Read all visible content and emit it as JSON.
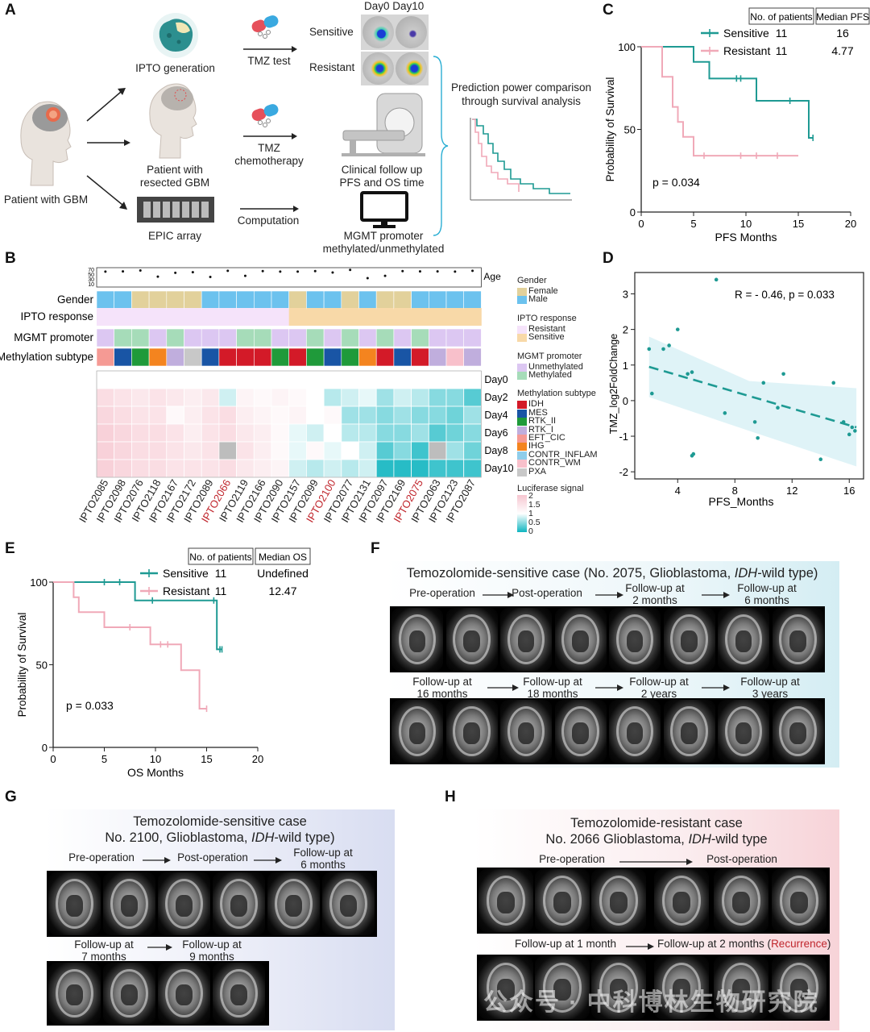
{
  "panels": {
    "A": "A",
    "B": "B",
    "C": "C",
    "D": "D",
    "E": "E",
    "F": "F",
    "G": "G",
    "H": "H"
  },
  "panelA": {
    "day_header": "Day0 Day10",
    "ipto_generation": "IPTO generation",
    "tmz_test": "TMZ test",
    "sensitive": "Sensitive",
    "resistant": "Resistant",
    "patient_gbm": "Patient with GBM",
    "patient_resected": "Patient with\nresected GBM",
    "tmz_chemo": "TMZ\nchemotherapy",
    "clinical": "Clinical follow up\nPFS and OS time",
    "epic": "EPIC array",
    "computation": "Computation",
    "mgmt": "MGMT promoter\nmethylated/unmethylated",
    "prediction": "Prediction power comparison\nthrough survival analysis",
    "icons": [
      "brain-organoid-icon",
      "capsule-icon",
      "head-profile-icon",
      "mri-scanner-icon",
      "monitor-icon",
      "epic-array-chip-icon",
      "mini-km-curve-icon"
    ]
  },
  "panelB": {
    "row_labels": {
      "gender": "Gender",
      "ipto": "IPTO response",
      "mgmt": "MGMT promoter",
      "methyl": "Methylation subtype"
    },
    "age_label": "Age",
    "age_ticks": [
      "70",
      "50",
      "30",
      "10"
    ],
    "ages": [
      62,
      63,
      66,
      45,
      58,
      60,
      44,
      65,
      48,
      64,
      62,
      62,
      64,
      59,
      68,
      40,
      48,
      64,
      63,
      63,
      62,
      65
    ],
    "samples": [
      "IPTO2085",
      "IPTO2098",
      "IPTO2076",
      "IPTO2118",
      "IPTO2167",
      "IPTO2172",
      "IPTO2089",
      "IPTO2066",
      "IPTO2119",
      "IPTO2166",
      "IPTO2090",
      "IPTO2157",
      "IPTO2099",
      "IPTO2100",
      "IPTO2077",
      "IPTO2131",
      "IPTO2097",
      "IPTO2169",
      "IPTO2075",
      "IPTO2063",
      "IPTO2123",
      "IPTO2087"
    ],
    "highlighted_samples": [
      "IPTO2066",
      "IPTO2100",
      "IPTO2075"
    ],
    "gender": [
      "M",
      "M",
      "F",
      "F",
      "F",
      "F",
      "M",
      "M",
      "M",
      "M",
      "M",
      "F",
      "M",
      "M",
      "F",
      "M",
      "F",
      "F",
      "M",
      "M",
      "M",
      "M"
    ],
    "ipto": [
      "R",
      "R",
      "R",
      "R",
      "R",
      "R",
      "R",
      "R",
      "R",
      "R",
      "R",
      "S",
      "S",
      "S",
      "S",
      "S",
      "S",
      "S",
      "S",
      "S",
      "S",
      "S"
    ],
    "mgmt": [
      "U",
      "M",
      "M",
      "U",
      "M",
      "U",
      "U",
      "U",
      "M",
      "M",
      "U",
      "U",
      "M",
      "U",
      "M",
      "U",
      "M",
      "U",
      "M",
      "U",
      "U",
      "U"
    ],
    "methyl": [
      "EFT_CIC",
      "MES",
      "RTK_II",
      "IHG",
      "RTK_I",
      "PXA",
      "MES",
      "IDH",
      "IDH",
      "IDH",
      "RTK_II",
      "IDH",
      "RTK_II",
      "MES",
      "RTK_II",
      "IHG",
      "IDH",
      "MES",
      "IDH",
      "RTK_I",
      "CONTR_WM",
      "RTK_I"
    ],
    "days": [
      "Day0",
      "Day2",
      "Day4",
      "Day6",
      "Day8",
      "Day10"
    ],
    "luciferase": [
      [
        1,
        1,
        1,
        1,
        1,
        1,
        1,
        1,
        1,
        1,
        1,
        1,
        1,
        1,
        1,
        1,
        1,
        1,
        1,
        1,
        1,
        1
      ],
      [
        1.6,
        1.5,
        1.4,
        1.5,
        1.4,
        1.3,
        1.4,
        0.8,
        1.2,
        1.1,
        1.2,
        1.1,
        1.0,
        0.7,
        0.8,
        0.9,
        0.6,
        0.8,
        0.7,
        0.5,
        0.5,
        0.3
      ],
      [
        1.7,
        1.6,
        1.5,
        1.5,
        1.1,
        1.3,
        1.5,
        1.6,
        1.3,
        1.2,
        1.1,
        1.2,
        1.0,
        1.1,
        0.6,
        0.6,
        0.5,
        0.6,
        0.5,
        0.5,
        0.4,
        0.6
      ],
      [
        1.8,
        1.7,
        1.6,
        1.6,
        1.5,
        1.3,
        1.5,
        1.6,
        1.4,
        1.3,
        1.1,
        0.9,
        0.8,
        1.0,
        0.7,
        0.7,
        0.5,
        0.5,
        0.6,
        0.3,
        0.4,
        0.5
      ],
      [
        1.8,
        1.7,
        1.6,
        1.6,
        1.5,
        1.4,
        1.5,
        "NA",
        1.5,
        1.3,
        1.1,
        0.9,
        1.1,
        0.9,
        1.0,
        0.8,
        0.3,
        0.5,
        0.2,
        "NA",
        0.6,
        0.4
      ],
      [
        1.8,
        1.7,
        1.6,
        1.6,
        1.5,
        1.5,
        1.5,
        1.6,
        1.4,
        1.3,
        1.2,
        0.8,
        0.7,
        0.8,
        0.7,
        0.8,
        0.1,
        0.1,
        0.1,
        0.2,
        0.2,
        0.2
      ]
    ],
    "legend": {
      "gender_title": "Gender",
      "gender_items": [
        {
          "label": "Female",
          "color": "#e2d19b"
        },
        {
          "label": "Male",
          "color": "#6cc2ee"
        }
      ],
      "ipto_title": "IPTO response",
      "ipto_items": [
        {
          "label": "Resistant",
          "color": "#f5e3fa"
        },
        {
          "label": "Sensitive",
          "color": "#f8d9a8"
        }
      ],
      "mgmt_title": "MGMT promoter",
      "mgmt_items": [
        {
          "label": "Unmethylated",
          "color": "#dcc7f2"
        },
        {
          "label": "Methylated",
          "color": "#a6dcb9"
        }
      ],
      "methyl_title": "Methylation subtype",
      "methyl_items": [
        {
          "label": "IDH",
          "color": "#d31a28"
        },
        {
          "label": "MES",
          "color": "#1955a5"
        },
        {
          "label": "RTK_II",
          "color": "#1f9a3a"
        },
        {
          "label": "RTK_I",
          "color": "#c0aedd"
        },
        {
          "label": "EFT_CIC",
          "color": "#f59a94"
        },
        {
          "label": "IHG",
          "color": "#f4841f"
        },
        {
          "label": "CONTR_INFLAM",
          "color": "#8fcdea"
        },
        {
          "label": "CONTR_WM",
          "color": "#f8c0cb"
        },
        {
          "label": "PXA",
          "color": "#c8c8c8"
        }
      ],
      "luc_title": "Luciferase signal",
      "luc_ticks": [
        "2",
        "1.5",
        "1",
        "0.5",
        "0"
      ]
    },
    "colors": {
      "low": "#0fb5c0",
      "mid": "#ffffff",
      "high": "#f6c6d0",
      "na": "#bdbdbd",
      "highlight": "#c0262d"
    }
  },
  "chart_data": [
    {
      "id": "C",
      "type": "line",
      "subtype": "kaplan-meier",
      "xlabel": "PFS Months",
      "ylabel": "Probability of Survival",
      "xlim": [
        0,
        20
      ],
      "ylim": [
        0,
        100
      ],
      "xticks": [
        0,
        5,
        10,
        15,
        20
      ],
      "yticks": [
        0,
        50,
        100
      ],
      "pvalue": "p = 0.034",
      "table_headers": [
        "No. of patients",
        "Median PFS"
      ],
      "series": [
        {
          "name": "Sensitive",
          "n": "11",
          "median": "16",
          "color": "#1e9a93",
          "steps": [
            [
              0,
              100
            ],
            [
              5,
              100
            ],
            [
              5,
              90.9
            ],
            [
              6.5,
              90.9
            ],
            [
              6.5,
              80.8
            ],
            [
              9.5,
              80.8
            ],
            [
              9.5,
              80.8
            ],
            [
              11,
              80.8
            ],
            [
              11,
              67.3
            ],
            [
              16,
              67.3
            ],
            [
              16,
              44.9
            ],
            [
              16.4,
              44.9
            ]
          ],
          "censors": [
            [
              9.1,
              80.8
            ],
            [
              9.5,
              80.8
            ],
            [
              14.2,
              67.3
            ],
            [
              16.4,
              44.9
            ]
          ]
        },
        {
          "name": "Resistant",
          "n": "11",
          "median": "4.77",
          "color": "#f0a9b8",
          "steps": [
            [
              0,
              100
            ],
            [
              2,
              100
            ],
            [
              2,
              81.8
            ],
            [
              3,
              81.8
            ],
            [
              3,
              63.6
            ],
            [
              3.5,
              63.6
            ],
            [
              3.5,
              54.5
            ],
            [
              4,
              54.5
            ],
            [
              4,
              45.5
            ],
            [
              5,
              45.5
            ],
            [
              5,
              34.1
            ],
            [
              15,
              34.1
            ]
          ],
          "censors": [
            [
              6,
              34.1
            ],
            [
              9.5,
              34.1
            ],
            [
              11,
              34.1
            ],
            [
              13,
              34.1
            ]
          ]
        }
      ]
    },
    {
      "id": "D",
      "type": "scatter",
      "xlabel": "PFS_Months",
      "ylabel": "TMZ_log2FoldChange",
      "xlim": [
        1,
        17
      ],
      "ylim": [
        -2.2,
        3.6
      ],
      "xticks": [
        4,
        8,
        12,
        16
      ],
      "yticks": [
        -2,
        -1,
        0,
        1,
        2,
        3
      ],
      "annotation": "R = - 0.46, p = 0.033",
      "color": "#1e9a93",
      "points": [
        [
          2,
          1.45
        ],
        [
          2.2,
          0.2
        ],
        [
          3,
          1.45
        ],
        [
          3.4,
          1.55
        ],
        [
          4,
          2.0
        ],
        [
          4.7,
          0.75
        ],
        [
          5,
          0.8
        ],
        [
          5,
          -1.55
        ],
        [
          5.1,
          -1.5
        ],
        [
          6.7,
          3.4
        ],
        [
          7.3,
          -0.35
        ],
        [
          9.4,
          -0.6
        ],
        [
          9.6,
          -1.05
        ],
        [
          10,
          0.5
        ],
        [
          11,
          -0.2
        ],
        [
          11.4,
          0.75
        ],
        [
          14,
          -1.65
        ],
        [
          14.9,
          0.5
        ],
        [
          15.6,
          -0.6
        ],
        [
          16,
          -0.95
        ],
        [
          16.2,
          -0.75
        ],
        [
          16.4,
          -0.85
        ]
      ],
      "fit": [
        [
          2,
          0.95
        ],
        [
          16.5,
          -0.75
        ]
      ]
    },
    {
      "id": "E",
      "type": "line",
      "subtype": "kaplan-meier",
      "xlabel": "OS Months",
      "ylabel": "Probability of Survival",
      "xlim": [
        0,
        20
      ],
      "ylim": [
        0,
        100
      ],
      "xticks": [
        0,
        5,
        10,
        15,
        20
      ],
      "yticks": [
        0,
        50,
        100
      ],
      "pvalue": "p = 0.033",
      "table_headers": [
        "No. of patients",
        "Median OS"
      ],
      "series": [
        {
          "name": "Sensitive",
          "n": "11",
          "median": "Undefined",
          "color": "#1e9a93",
          "steps": [
            [
              0,
              100
            ],
            [
              8,
              100
            ],
            [
              8,
              88.9
            ],
            [
              16,
              88.9
            ],
            [
              16,
              59.3
            ],
            [
              16.5,
              59.3
            ]
          ],
          "censors": [
            [
              5,
              100
            ],
            [
              6.5,
              100
            ],
            [
              9.7,
              88.9
            ],
            [
              15.7,
              88.9
            ],
            [
              16.3,
              59.3
            ],
            [
              16.5,
              59.3
            ]
          ]
        },
        {
          "name": "Resistant",
          "n": "11",
          "median": "12.47",
          "color": "#f0a9b8",
          "steps": [
            [
              0,
              100
            ],
            [
              2,
              100
            ],
            [
              2,
              90.9
            ],
            [
              2.5,
              90.9
            ],
            [
              2.5,
              81.8
            ],
            [
              5,
              81.8
            ],
            [
              5,
              72.7
            ],
            [
              9.5,
              72.7
            ],
            [
              9.5,
              62.3
            ],
            [
              12.5,
              62.3
            ],
            [
              12.5,
              46.7
            ],
            [
              14.3,
              46.7
            ],
            [
              14.3,
              23.4
            ],
            [
              15,
              23.4
            ]
          ],
          "censors": [
            [
              7.5,
              72.7
            ],
            [
              10.5,
              62.3
            ],
            [
              11.2,
              62.3
            ],
            [
              15,
              23.4
            ]
          ]
        }
      ]
    }
  ],
  "panelF": {
    "title": "Temozolomide-sensitive case (No. 2075, Glioblastoma, ",
    "title_italic": "IDH",
    "title_end": "-wild type)",
    "row1_labels": [
      "Pre-operation",
      "Post-operation",
      "Follow-up at\n2 months",
      "Follow-up at\n6 months"
    ],
    "row2_labels": [
      "Follow-up at\n16 months",
      "Follow-up at\n18 months",
      "Follow-up at\n2 years",
      "Follow-up at\n3 years"
    ]
  },
  "panelG": {
    "title1": "Temozolomide-sensitive case",
    "title2": "No. 2100, Glioblastoma, ",
    "title2_italic": "IDH",
    "title2_end": "-wild type)",
    "row1_labels": [
      "Pre-operation",
      "Post-operation",
      "Follow-up at\n6 months"
    ],
    "row2_labels": [
      "Follow-up at\n7 months",
      "Follow-up at\n9 months"
    ]
  },
  "panelH": {
    "title1": "Temozolomide-resistant case",
    "title2": "No. 2066 Glioblastoma, ",
    "title2_italic": "IDH",
    "title2_end": "-wild type",
    "row1_labels": [
      "Pre-operation",
      "Post-operation"
    ],
    "row2_label": "Follow-up at 1 month",
    "row2_label_b": "Follow-up at 2 months (",
    "recurrence": "Recurrence",
    "row2_label_b_end": ")",
    "watermark": "公众号 · 中科博林生物研究院"
  }
}
